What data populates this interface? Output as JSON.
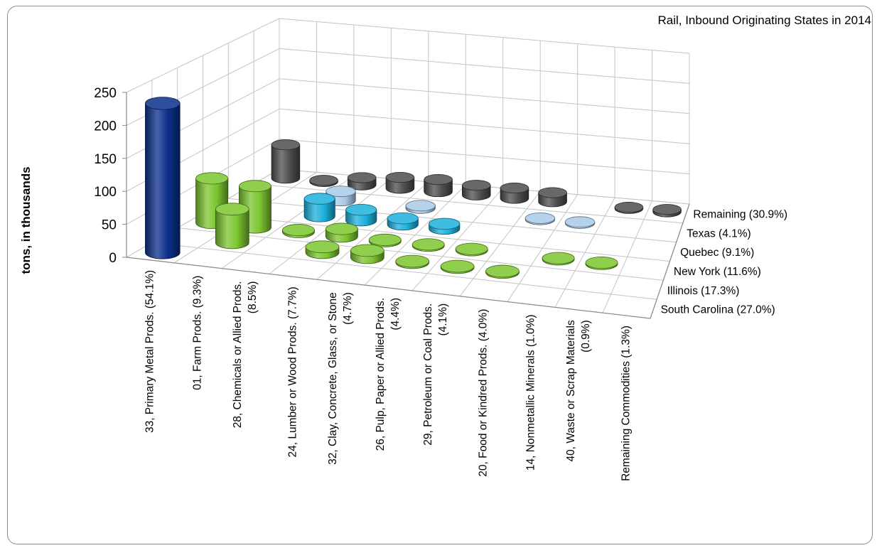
{
  "chart_data": {
    "type": "bar",
    "subtype": "3d-cylinder",
    "title": "Rail, Inbound Originating States in 2014",
    "ylabel": "tons, in thousands",
    "ylim": [
      0,
      250
    ],
    "yticks": [
      0,
      50,
      100,
      150,
      200,
      250
    ],
    "grid": true,
    "categories": [
      "33, Primary Metal Prods. (54.1%)",
      "01, Farm Prods. (9.3%)",
      "28, Chemicals or Allied Prods. (8.5%)",
      "24, Lumber or Wood Prods. (7.7%)",
      "32, Clay, Concrete, Glass, or Stone (4.7%)",
      "26, Pulp, Paper or Allied Prods. (4.4%)",
      "29, Petroleum or Coal Prods. (4.1%)",
      "20, Food or Kindred Prods. (4.0%)",
      "14, Nonmetallic Minerals (1.0%)",
      "40, Waste or Scrap Materials (0.9%)",
      "Remaining Commodities (1.3%)"
    ],
    "series": [
      {
        "name": "South Carolina  (27.0%)",
        "color": "#0a2f8c",
        "values": [
          228,
          0,
          0,
          0,
          0,
          0,
          0,
          0,
          0,
          0,
          0
        ]
      },
      {
        "name": "Illinois  (17.3%)",
        "color": "#7cc52f",
        "values": [
          0,
          52,
          0,
          9,
          11,
          2,
          2,
          2,
          0,
          0,
          0
        ]
      },
      {
        "name": "New York  (11.6%)",
        "color": "#7cc52f",
        "values": [
          70,
          65,
          3,
          12,
          2,
          2,
          2,
          0,
          2,
          2,
          0
        ]
      },
      {
        "name": "Quebec  (9.1%)",
        "color": "#1cb0dc",
        "values": [
          0,
          0,
          28,
          17,
          10,
          8,
          0,
          0,
          0,
          0,
          0
        ]
      },
      {
        "name": "Texas  (4.1%)",
        "color": "#a9c9e8",
        "values": [
          0,
          0,
          15,
          0,
          4,
          0,
          0,
          2,
          2,
          0,
          0
        ]
      },
      {
        "name": "Remaining (30.9%)",
        "color": "#4d4d4d",
        "values": [
          55,
          2,
          12,
          18,
          20,
          16,
          17,
          15,
          0,
          2,
          4
        ]
      }
    ]
  }
}
